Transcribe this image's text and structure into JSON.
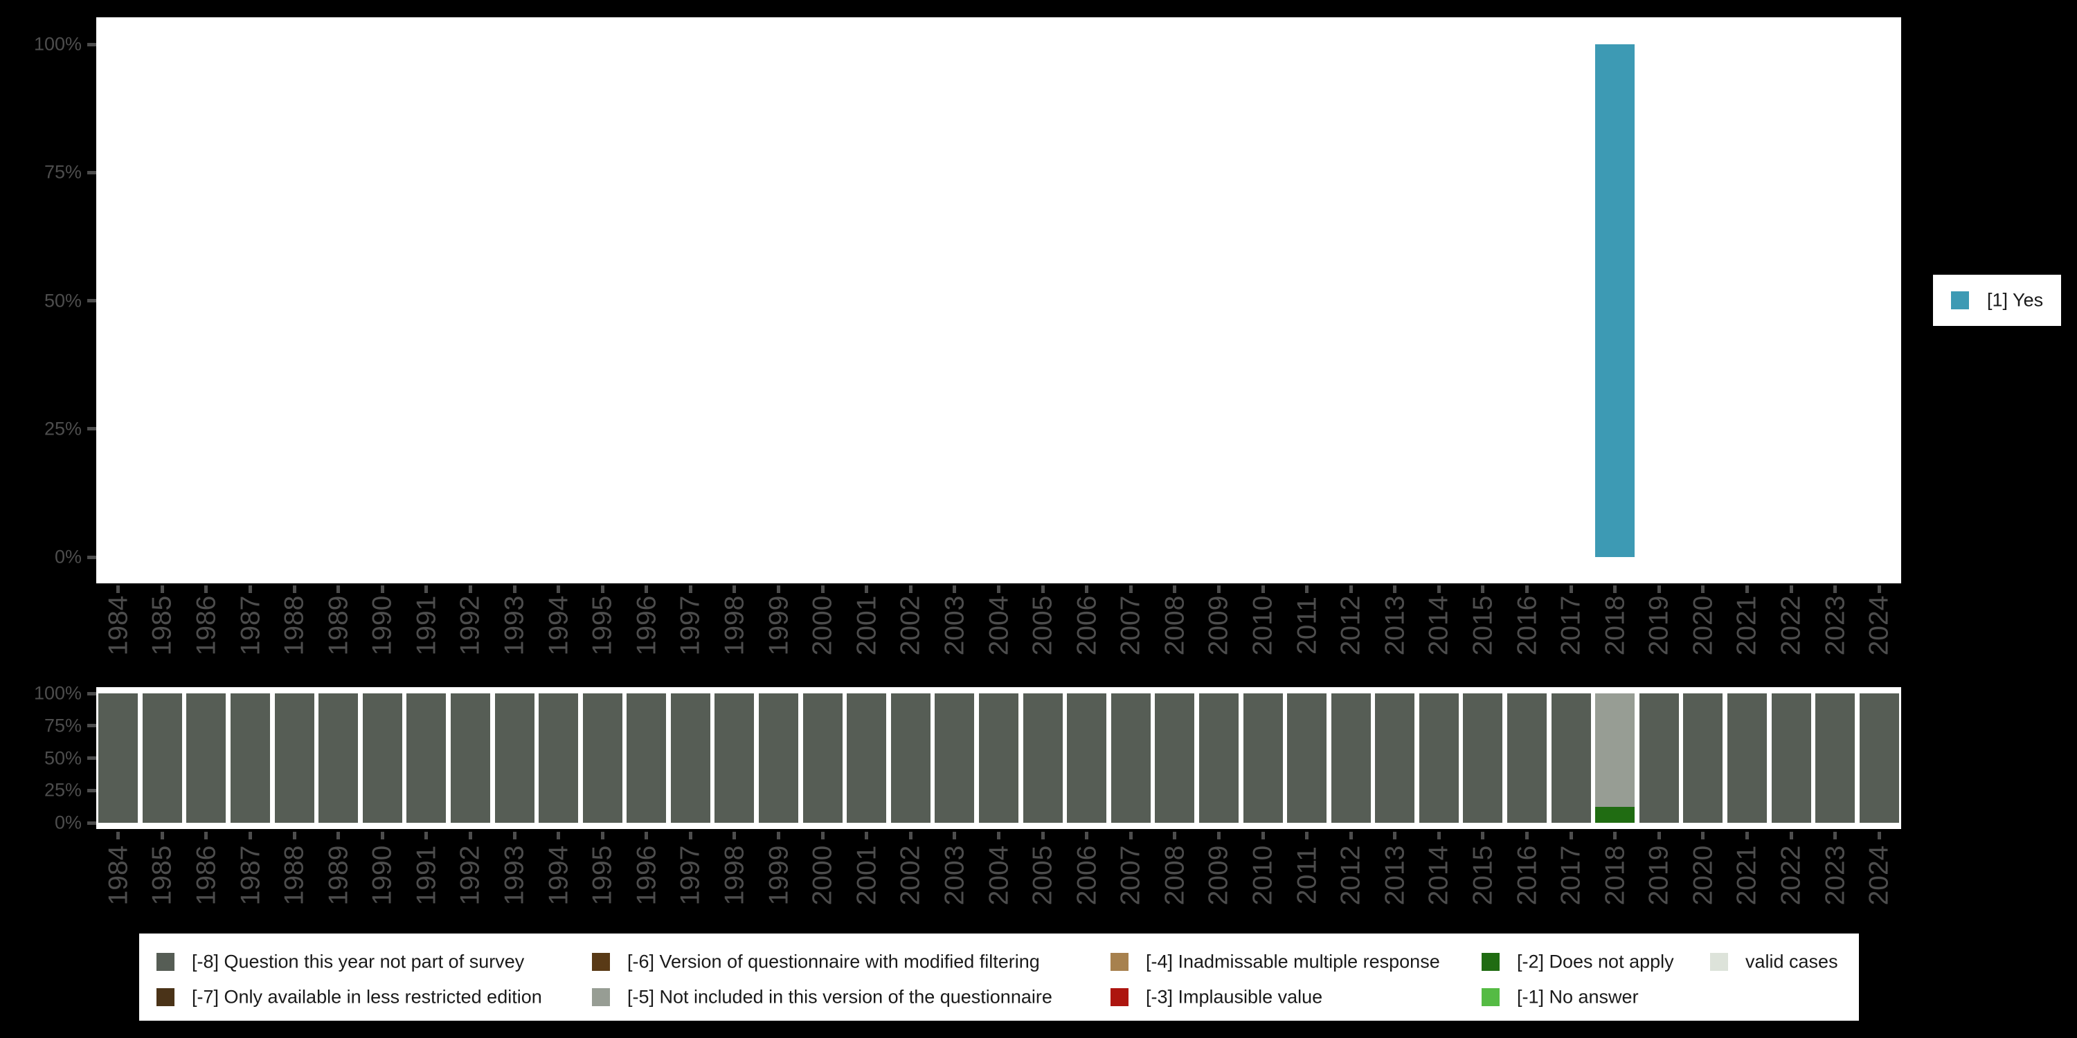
{
  "background": "#000000",
  "plot_background": "#ffffff",
  "axis": {
    "text_color": "#4d4d4d",
    "ytick_labels": [
      "100%",
      "75%",
      "50%",
      "25%",
      "0%"
    ],
    "ytick_values": [
      100,
      75,
      50,
      25,
      0
    ]
  },
  "top_legend": {
    "label": "[1] Yes",
    "color": "#3d9ab4"
  },
  "bottom_legend_columns": [
    [
      {
        "label": "[-8] Question this year not part of survey",
        "color": "#565d55"
      },
      {
        "label": "[-7] Only available in less restricted edition",
        "color": "#4a3318"
      }
    ],
    [
      {
        "label": "[-6] Version of questionnaire with modified filtering",
        "color": "#593a16"
      },
      {
        "label": "[-5] Not included in this version of the questionnaire",
        "color": "#979d94"
      }
    ],
    [
      {
        "label": "[-4] Inadmissable multiple response",
        "color": "#a7814e"
      },
      {
        "label": "[-3] Implausible value",
        "color": "#ad150f"
      }
    ],
    [
      {
        "label": "[-2] Does not apply",
        "color": "#206c12"
      },
      {
        "label": "[-1] No answer",
        "color": "#55bb44"
      }
    ],
    [
      {
        "label": "valid cases",
        "color": "#dde3da"
      }
    ]
  ],
  "chart_data": [
    {
      "type": "bar",
      "subtype": "stacked-percent",
      "title": "",
      "xlabel": "",
      "ylabel": "",
      "ylim": [
        0,
        100
      ],
      "yticks": [
        "0%",
        "25%",
        "50%",
        "75%",
        "100%"
      ],
      "grid": false,
      "legend_position": "right",
      "categories": [
        "1984",
        "1985",
        "1986",
        "1987",
        "1988",
        "1989",
        "1990",
        "1991",
        "1992",
        "1993",
        "1994",
        "1995",
        "1996",
        "1997",
        "1998",
        "1999",
        "2000",
        "2001",
        "2002",
        "2003",
        "2004",
        "2005",
        "2006",
        "2007",
        "2008",
        "2009",
        "2010",
        "2011",
        "2012",
        "2013",
        "2014",
        "2015",
        "2016",
        "2017",
        "2018",
        "2019",
        "2020",
        "2021",
        "2022",
        "2023",
        "2024"
      ],
      "series": [
        {
          "name": "[1] Yes",
          "color": "#3d9ab4",
          "values": [
            0,
            0,
            0,
            0,
            0,
            0,
            0,
            0,
            0,
            0,
            0,
            0,
            0,
            0,
            0,
            0,
            0,
            0,
            0,
            0,
            0,
            0,
            0,
            0,
            0,
            0,
            0,
            0,
            0,
            0,
            0,
            0,
            0,
            0,
            100,
            0,
            0,
            0,
            0,
            0,
            0
          ]
        }
      ]
    },
    {
      "type": "bar",
      "subtype": "stacked-percent",
      "title": "",
      "xlabel": "",
      "ylabel": "",
      "ylim": [
        0,
        100
      ],
      "yticks": [
        "0%",
        "25%",
        "50%",
        "75%",
        "100%"
      ],
      "grid": false,
      "legend_position": "bottom",
      "stacking": "series listed bottom-to-top",
      "categories": [
        "1984",
        "1985",
        "1986",
        "1987",
        "1988",
        "1989",
        "1990",
        "1991",
        "1992",
        "1993",
        "1994",
        "1995",
        "1996",
        "1997",
        "1998",
        "1999",
        "2000",
        "2001",
        "2002",
        "2003",
        "2004",
        "2005",
        "2006",
        "2007",
        "2008",
        "2009",
        "2010",
        "2011",
        "2012",
        "2013",
        "2014",
        "2015",
        "2016",
        "2017",
        "2018",
        "2019",
        "2020",
        "2021",
        "2022",
        "2023",
        "2024"
      ],
      "series": [
        {
          "name": "[-8] Question this year not part of survey",
          "color": "#565d55",
          "values": [
            100,
            100,
            100,
            100,
            100,
            100,
            100,
            100,
            100,
            100,
            100,
            100,
            100,
            100,
            100,
            100,
            100,
            100,
            100,
            100,
            100,
            100,
            100,
            100,
            100,
            100,
            100,
            100,
            100,
            100,
            100,
            100,
            100,
            100,
            0,
            100,
            100,
            100,
            100,
            100,
            100
          ]
        },
        {
          "name": "[-2] Does not apply",
          "color": "#206c12",
          "values": [
            0,
            0,
            0,
            0,
            0,
            0,
            0,
            0,
            0,
            0,
            0,
            0,
            0,
            0,
            0,
            0,
            0,
            0,
            0,
            0,
            0,
            0,
            0,
            0,
            0,
            0,
            0,
            0,
            0,
            0,
            0,
            0,
            0,
            0,
            12.5,
            0,
            0,
            0,
            0,
            0,
            0
          ]
        },
        {
          "name": "[-5] Not included in this version of the questionnaire",
          "color": "#979d94",
          "values": [
            0,
            0,
            0,
            0,
            0,
            0,
            0,
            0,
            0,
            0,
            0,
            0,
            0,
            0,
            0,
            0,
            0,
            0,
            0,
            0,
            0,
            0,
            0,
            0,
            0,
            0,
            0,
            0,
            0,
            0,
            0,
            0,
            0,
            0,
            87.5,
            0,
            0,
            0,
            0,
            0,
            0
          ]
        }
      ]
    }
  ]
}
